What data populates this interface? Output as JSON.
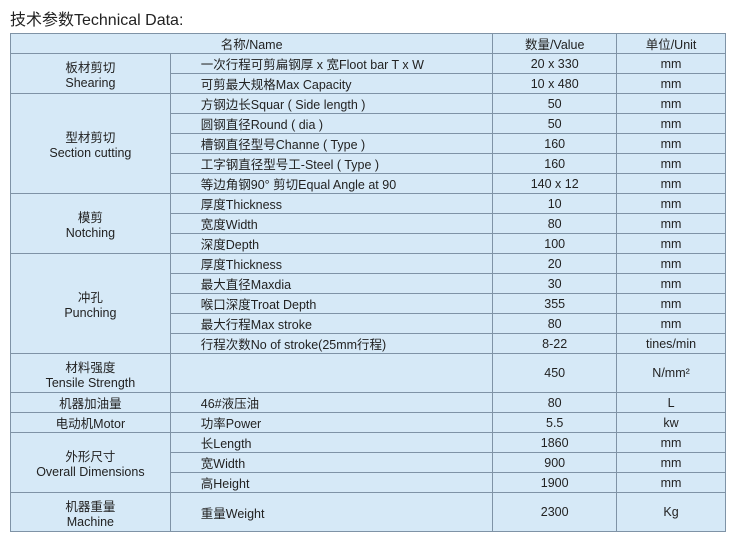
{
  "title": "技术参数Technical Data:",
  "header": {
    "name": "名称/Name",
    "value": "数量/Value",
    "unit": "单位/Unit"
  },
  "groups": [
    {
      "label": [
        "板材剪切",
        "Shearing"
      ],
      "rows": [
        {
          "name": "一次行程可剪扁钢厚 x 宽Floot bar T x W",
          "value": "20 x 330",
          "unit": "mm"
        },
        {
          "name": "可剪最大规格Max Capacity",
          "value": "10 x 480",
          "unit": "mm"
        }
      ]
    },
    {
      "label": [
        "型材剪切",
        "Section cutting"
      ],
      "rows": [
        {
          "name": "方钢边长Squar ( Side length )",
          "value": "50",
          "unit": "mm"
        },
        {
          "name": "圆钢直径Round ( dia )",
          "value": "50",
          "unit": "mm"
        },
        {
          "name": "槽钢直径型号Channe ( Type )",
          "value": "160",
          "unit": "mm"
        },
        {
          "name": "工字钢直径型号工-Steel ( Type )",
          "value": "160",
          "unit": "mm"
        },
        {
          "name": "等边角钢90°  剪切Equal Angle at 90",
          "value": "140 x 12",
          "unit": "mm"
        }
      ]
    },
    {
      "label": [
        "模剪",
        "Notching"
      ],
      "rows": [
        {
          "name": "厚度Thickness",
          "value": "10",
          "unit": "mm"
        },
        {
          "name": "宽度Width",
          "value": "80",
          "unit": "mm"
        },
        {
          "name": "深度Depth",
          "value": "100",
          "unit": "mm"
        }
      ]
    },
    {
      "label": [
        "冲孔",
        "Punching"
      ],
      "rows": [
        {
          "name": "厚度Thickness",
          "value": "20",
          "unit": "mm"
        },
        {
          "name": "最大直径Maxdia",
          "value": "30",
          "unit": "mm"
        },
        {
          "name": "喉口深度Troat Depth",
          "value": "355",
          "unit": "mm"
        },
        {
          "name": "最大行程Max stroke",
          "value": "80",
          "unit": "mm"
        },
        {
          "name": "行程次数No of stroke(25mm行程)",
          "value": "8-22",
          "unit": "tines/min"
        }
      ]
    },
    {
      "label": [
        "材料强度",
        "Tensile Strength"
      ],
      "tall": true,
      "rows": [
        {
          "name": "",
          "value": "450",
          "unit": "N/mm²"
        }
      ]
    },
    {
      "label": [
        "机器加油量"
      ],
      "rows": [
        {
          "name": "46#液压油",
          "value": "80",
          "unit": "L"
        }
      ]
    },
    {
      "label": [
        "电动机Motor"
      ],
      "rows": [
        {
          "name": "功率Power",
          "value": "5.5",
          "unit": "kw"
        }
      ]
    },
    {
      "label": [
        "外形尺寸",
        "Overall Dimensions"
      ],
      "rows": [
        {
          "name": "长Length",
          "value": "1860",
          "unit": "mm"
        },
        {
          "name": "宽Width",
          "value": "900",
          "unit": "mm"
        },
        {
          "name": "高Height",
          "value": "1900",
          "unit": "mm"
        }
      ]
    },
    {
      "label": [
        "机器重量",
        "Machine"
      ],
      "tall": true,
      "rows": [
        {
          "name": "重量Weight",
          "value": "2300",
          "unit": "Kg"
        }
      ]
    }
  ]
}
